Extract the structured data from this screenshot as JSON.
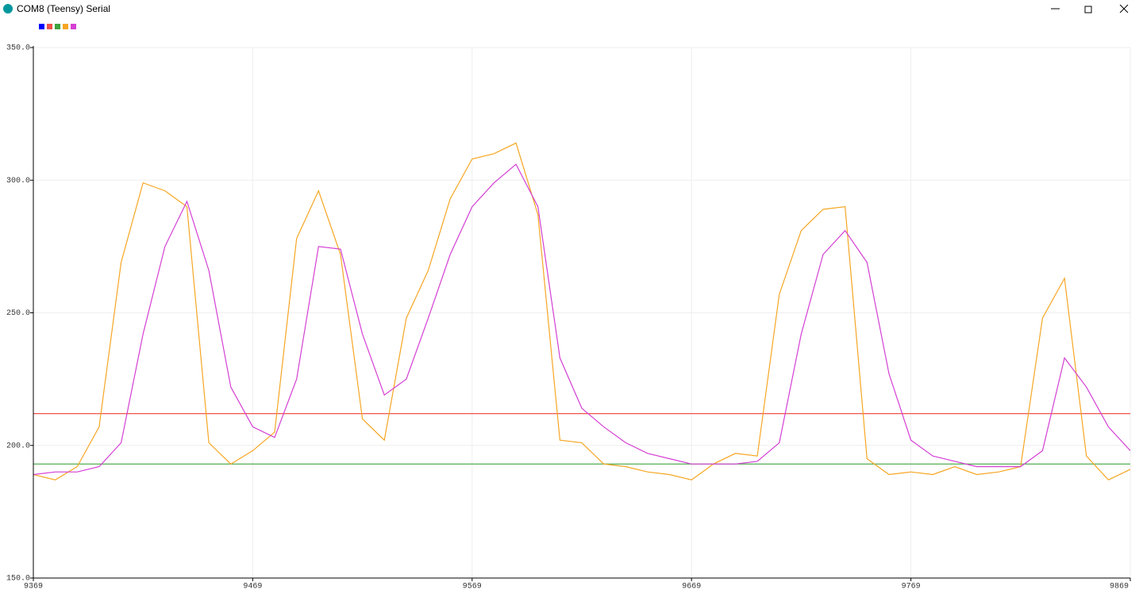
{
  "chart_data": {
    "type": "line",
    "title": "COM8 (Teensy) Serial",
    "x": [
      9369,
      9379,
      9389,
      9399,
      9409,
      9419,
      9429,
      9439,
      9449,
      9459,
      9469,
      9479,
      9489,
      9499,
      9509,
      9519,
      9529,
      9539,
      9549,
      9559,
      9569,
      9579,
      9589,
      9599,
      9609,
      9619,
      9629,
      9639,
      9649,
      9659,
      9669,
      9679,
      9689,
      9699,
      9709,
      9719,
      9729,
      9739,
      9749,
      9759,
      9769,
      9779,
      9789,
      9799,
      9809,
      9819,
      9829,
      9839,
      9849,
      9859,
      9869
    ],
    "xlim": [
      9369,
      9869
    ],
    "xticks": [
      9369,
      9469,
      9569,
      9669,
      9769,
      9869
    ],
    "ylim": [
      150,
      350
    ],
    "yticks": [
      {
        "value": 150,
        "label": "150.0"
      },
      {
        "value": 200,
        "label": "200.0"
      },
      {
        "value": 250,
        "label": "250.0"
      },
      {
        "value": 300,
        "label": "300.0"
      },
      {
        "value": 350,
        "label": "350.0"
      }
    ],
    "grid": true,
    "series": [
      {
        "color": "#0000ff",
        "values": [
          null,
          null,
          null,
          null,
          null,
          null,
          null,
          null,
          null,
          null,
          null,
          null,
          null,
          null,
          null,
          null,
          null,
          null,
          null,
          null,
          null,
          null,
          null,
          null,
          null,
          null,
          null,
          null,
          null,
          null,
          null,
          null,
          null,
          null,
          null,
          null,
          null,
          null,
          null,
          null,
          null,
          null,
          null,
          null,
          null,
          null,
          null,
          null,
          null,
          null,
          null
        ]
      },
      {
        "color": "#f0544a",
        "values": [
          212,
          212,
          212,
          212,
          212,
          212,
          212,
          212,
          212,
          212,
          212,
          212,
          212,
          212,
          212,
          212,
          212,
          212,
          212,
          212,
          212,
          212,
          212,
          212,
          212,
          212,
          212,
          212,
          212,
          212,
          212,
          212,
          212,
          212,
          212,
          212,
          212,
          212,
          212,
          212,
          212,
          212,
          212,
          212,
          212,
          212,
          212,
          212,
          212,
          212,
          212
        ]
      },
      {
        "color": "#3ea33e",
        "values": [
          193,
          193,
          193,
          193,
          193,
          193,
          193,
          193,
          193,
          193,
          193,
          193,
          193,
          193,
          193,
          193,
          193,
          193,
          193,
          193,
          193,
          193,
          193,
          193,
          193,
          193,
          193,
          193,
          193,
          193,
          193,
          193,
          193,
          193,
          193,
          193,
          193,
          193,
          193,
          193,
          193,
          193,
          193,
          193,
          193,
          193,
          193,
          193,
          193,
          193,
          193
        ]
      },
      {
        "color": "#f5a623",
        "values": [
          189,
          187,
          192,
          207,
          269,
          299,
          296,
          290,
          201,
          193,
          198,
          205,
          278,
          296,
          272,
          210,
          202,
          248,
          266,
          293,
          308,
          310,
          314,
          287,
          202,
          201,
          193,
          192,
          190,
          189,
          187,
          193,
          197,
          196,
          257,
          281,
          289,
          290,
          195,
          189,
          190,
          189,
          192,
          189,
          190,
          192,
          248,
          263,
          196,
          187,
          191
        ]
      },
      {
        "color": "#d43fd4",
        "values": [
          189,
          190,
          190,
          192,
          201,
          242,
          275,
          292,
          266,
          222,
          207,
          203,
          225,
          275,
          274,
          242,
          219,
          225,
          248,
          272,
          290,
          299,
          306,
          290,
          233,
          214,
          207,
          201,
          197,
          195,
          193,
          193,
          193,
          194,
          201,
          242,
          272,
          281,
          269,
          227,
          202,
          196,
          194,
          192,
          192,
          192,
          198,
          233,
          222,
          207,
          198
        ]
      }
    ]
  }
}
